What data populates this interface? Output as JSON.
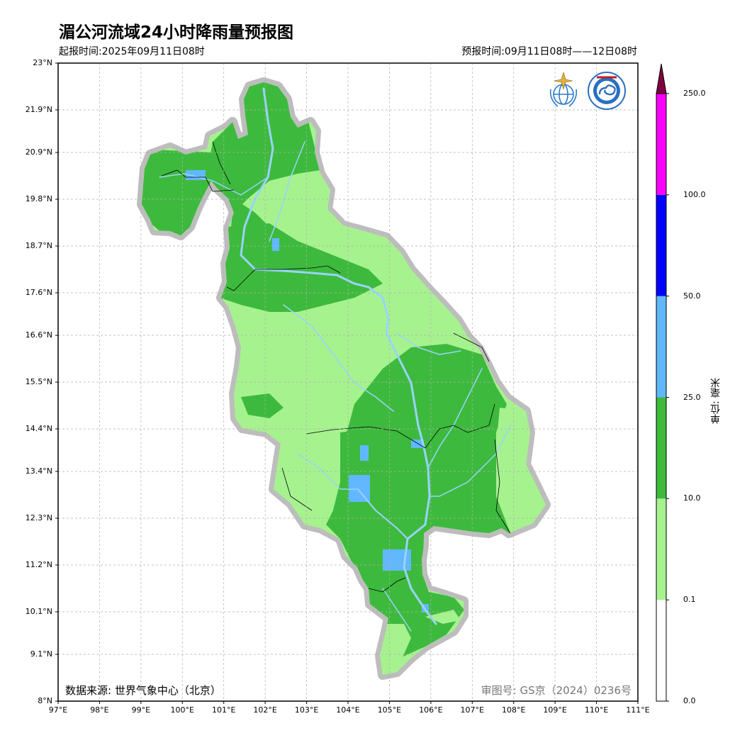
{
  "title": "湄公河流域24小时降雨量预报图",
  "issue_time": "起报时间:2025年09月11日08时",
  "forecast_time": "预报时间:09月11日08时——12日08时",
  "data_source": "数据来源: 世界气象中心（北京）",
  "review_number": "审图号: GS京（2024）0236号",
  "colorbar": {
    "unit_label": "单位: 毫米",
    "levels": [
      "0.0",
      "0.1",
      "10.0",
      "25.0",
      "50.0",
      "100.0",
      "250.0"
    ],
    "colors": [
      "#ffffff",
      "#a6f28f",
      "#3dba3d",
      "#61b8ff",
      "#0000ff",
      "#fa00fa",
      "#800040"
    ]
  },
  "map": {
    "lat_ticks": [
      "23°N",
      "21.9°N",
      "20.9°N",
      "19.8°N",
      "18.7°N",
      "17.6°N",
      "16.6°N",
      "15.5°N",
      "14.4°N",
      "13.4°N",
      "12.3°N",
      "11.2°N",
      "10.1°N",
      "9.1°N",
      "8°N"
    ],
    "lon_ticks": [
      "97°E",
      "98°E",
      "99°E",
      "100°E",
      "101°E",
      "102°E",
      "103°E",
      "104°E",
      "105°E",
      "106°E",
      "107°E",
      "108°E",
      "109°E",
      "110°E",
      "111°E"
    ],
    "extent": {
      "lon": [
        97,
        111
      ],
      "lat": [
        8,
        23
      ]
    },
    "grid": "dashed",
    "basin_fill_color": "#a6f28f",
    "heavy_rain_color": "#3dba3d",
    "river_color": "#9ad3ff"
  },
  "logos": [
    "wmo-logo",
    "cma-logo"
  ]
}
